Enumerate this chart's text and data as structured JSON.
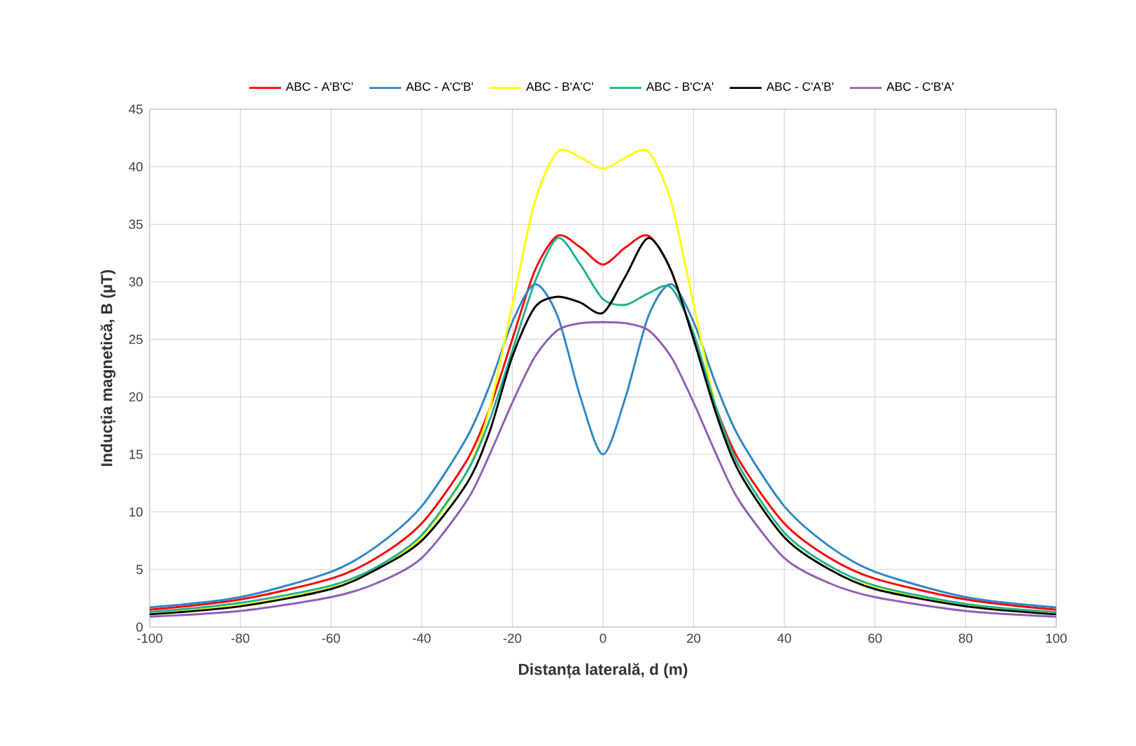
{
  "chart_data": {
    "type": "line",
    "xlabel": "Distanța laterală, d (m)",
    "ylabel": "Inducția magnetică, B (µT)",
    "x": [
      -100,
      -80,
      -60,
      -50,
      -40,
      -30,
      -25,
      -20,
      -15,
      -10,
      -5,
      0,
      5,
      10,
      15,
      20,
      25,
      30,
      40,
      50,
      60,
      80,
      100
    ],
    "series": [
      {
        "name": "ABC - A'B'C'",
        "color": "#ff0000",
        "values": [
          1.5,
          2.4,
          4.2,
          6,
          9,
          14.5,
          19,
          25,
          31,
          34,
          33,
          31.5,
          33,
          34,
          31,
          25,
          19,
          14.5,
          9,
          6,
          4.2,
          2.4,
          1.5
        ]
      },
      {
        "name": "ABC - A'C'B'",
        "color": "#2e86c8",
        "values": [
          1.7,
          2.6,
          4.8,
          7,
          10.5,
          16.5,
          21,
          26.5,
          29.8,
          27,
          20,
          15,
          20,
          27,
          29.8,
          26.5,
          21,
          16.5,
          10.5,
          7,
          4.8,
          2.6,
          1.7
        ]
      },
      {
        "name": "ABC - B'A'C'",
        "color": "#ffff00",
        "values": [
          1.2,
          1.9,
          3.4,
          5,
          7.8,
          13.5,
          19,
          28,
          37,
          41.3,
          40.8,
          39.8,
          40.8,
          41.3,
          37,
          28,
          19,
          13.5,
          7.8,
          5,
          3.4,
          1.9,
          1.2
        ]
      },
      {
        "name": "ABC - B'C'A'",
        "color": "#20b090",
        "values": [
          1.3,
          2.1,
          3.6,
          5.2,
          8,
          13.5,
          18,
          24,
          30,
          33.8,
          31.5,
          28.5,
          28,
          29,
          29.5,
          25.5,
          19,
          14,
          8.2,
          5.3,
          3.6,
          2,
          1.3
        ]
      },
      {
        "name": "ABC - C'A'B'",
        "color": "#000000",
        "values": [
          1.1,
          1.8,
          3.3,
          5,
          7.5,
          12.5,
          17,
          23.5,
          27.8,
          28.7,
          28.2,
          27.3,
          30.5,
          33.8,
          31,
          25,
          18.5,
          13.5,
          7.8,
          5,
          3.3,
          1.8,
          1.1
        ]
      },
      {
        "name": "ABC - C'B'A'",
        "color": "#8e5fb5",
        "values": [
          0.9,
          1.4,
          2.6,
          3.8,
          6,
          11,
          15,
          19.5,
          23.5,
          25.8,
          26.4,
          26.5,
          26.4,
          25.8,
          23.5,
          19.5,
          15,
          11,
          6,
          3.8,
          2.6,
          1.4,
          0.9
        ]
      }
    ],
    "xlim": [
      -100,
      100
    ],
    "xticks": [
      -100,
      -80,
      -60,
      -40,
      -20,
      0,
      20,
      40,
      60,
      80,
      100
    ],
    "ylim": [
      0,
      45
    ],
    "yticks": [
      0,
      5,
      10,
      15,
      20,
      25,
      30,
      35,
      40,
      45
    ],
    "grid": true,
    "legend": "top",
    "line_style": "solid"
  }
}
